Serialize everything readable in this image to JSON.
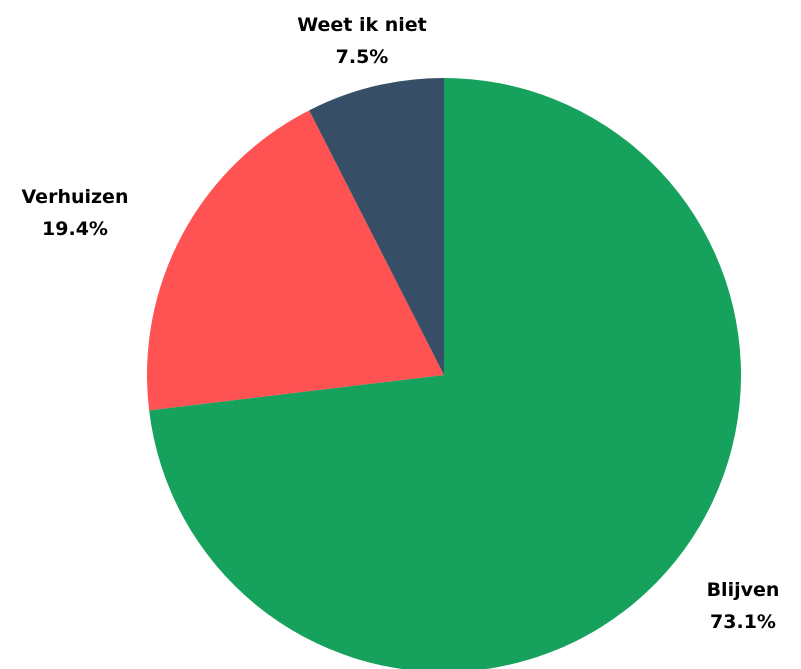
{
  "chart_data": {
    "type": "pie",
    "start_angle_deg": 0,
    "direction": "clockwise",
    "legend": "none",
    "slices": [
      {
        "label": "Blijven",
        "value": 73.1,
        "value_label": "73.1%",
        "color": "#16a25c"
      },
      {
        "label": "Verhuizen",
        "value": 19.4,
        "value_label": "19.4%",
        "color": "#fe5253"
      },
      {
        "label": "Weet ik niet",
        "value": 7.5,
        "value_label": "7.5%",
        "color": "#364f67"
      }
    ]
  }
}
